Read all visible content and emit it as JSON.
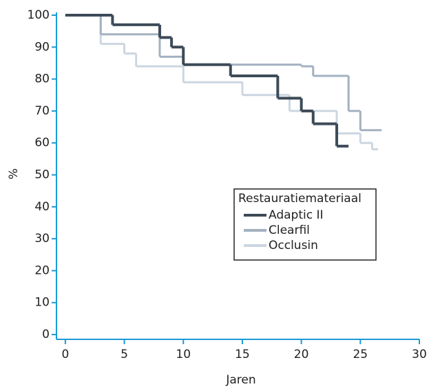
{
  "chart_data": {
    "type": "step",
    "xlabel": "Jaren",
    "ylabel": "%",
    "xlim": [
      -0.75,
      30
    ],
    "ylim": [
      -1.5,
      100
    ],
    "xticks": [
      0,
      5,
      10,
      15,
      20,
      25,
      30
    ],
    "yticks": [
      0,
      10,
      20,
      30,
      40,
      50,
      60,
      70,
      80,
      90,
      100
    ],
    "axis_color": "#1a9ad6",
    "legend_title": "Restauratiemateriaal",
    "series": [
      {
        "name": "Adaptic II",
        "color": "#3d4b58",
        "x": [
          0,
          4,
          8,
          9,
          10,
          14,
          18,
          20,
          21,
          23,
          24
        ],
        "values": [
          100,
          97,
          93,
          90,
          84.5,
          81,
          74,
          70,
          66,
          59,
          57
        ]
      },
      {
        "name": "Clearfil",
        "color": "#a3b1c0",
        "x": [
          0,
          3,
          8,
          10,
          20,
          21,
          24,
          25,
          26.8
        ],
        "values": [
          100,
          94,
          87,
          84.5,
          84,
          81,
          70,
          64,
          64
        ]
      },
      {
        "name": "Occlusin",
        "color": "#ccd6e1",
        "x": [
          0,
          3,
          5,
          6,
          10,
          15,
          19,
          23,
          25,
          26,
          26.5
        ],
        "values": [
          100,
          91,
          88,
          84,
          79,
          75,
          70,
          63,
          60,
          58,
          58
        ]
      }
    ]
  }
}
